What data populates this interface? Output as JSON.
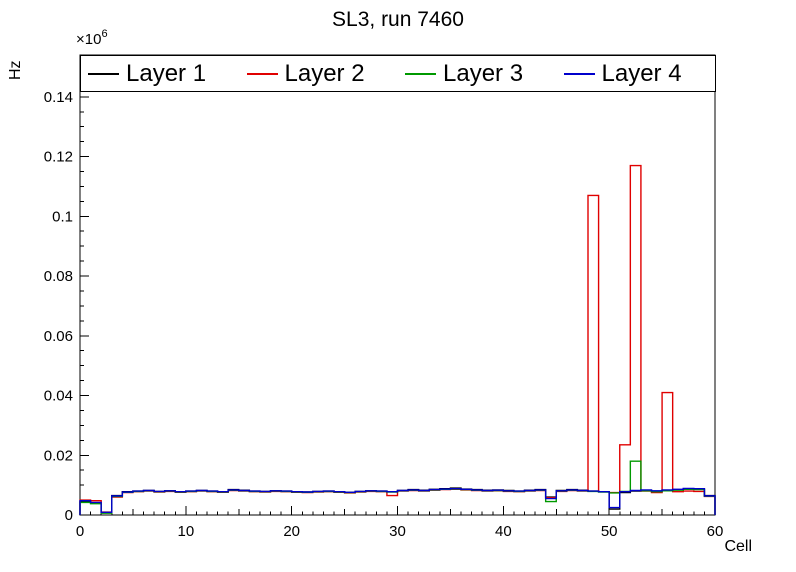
{
  "chart_data": {
    "type": "line",
    "subtype": "step-histogram",
    "title": "SL3, run 7460",
    "xlabel": "Cell",
    "ylabel": "Hz",
    "y_exponent_base": "×10",
    "y_exponent_power": "6",
    "values_unit": "Hz, in units of 10^6",
    "xlim": [
      0,
      60
    ],
    "ylim": [
      0,
      0.154
    ],
    "bin_width": 1,
    "grid": false,
    "legend_position": "top",
    "xticks": [
      0,
      10,
      20,
      30,
      40,
      50,
      60
    ],
    "ytick_values": [
      0,
      0.02,
      0.04,
      0.06,
      0.08,
      0.1,
      0.12,
      0.14
    ],
    "ytick_labels": [
      "0",
      "0.02",
      "0.04",
      "0.06",
      "0.08",
      "0.1",
      "0.12",
      "0.14"
    ],
    "series": [
      {
        "name": "Layer 1",
        "color": "#000000",
        "values": [
          0.0045,
          0.004,
          0.0008,
          0.0065,
          0.0078,
          0.008,
          0.0082,
          0.0079,
          0.0081,
          0.0078,
          0.008,
          0.0082,
          0.008,
          0.0078,
          0.0085,
          0.0083,
          0.008,
          0.0079,
          0.0081,
          0.008,
          0.0078,
          0.0077,
          0.0079,
          0.008,
          0.0078,
          0.0076,
          0.0079,
          0.0081,
          0.008,
          0.0078,
          0.0082,
          0.0085,
          0.0083,
          0.0086,
          0.0088,
          0.009,
          0.0087,
          0.0085,
          0.0083,
          0.0084,
          0.0082,
          0.008,
          0.0083,
          0.0085,
          0.006,
          0.0082,
          0.0085,
          0.0083,
          0.008,
          0.0078,
          0.002,
          0.0075,
          0.008,
          0.0082,
          0.008,
          0.0083,
          0.0085,
          0.0088,
          0.0087,
          0.0065
        ]
      },
      {
        "name": "Layer 2",
        "color": "#e00000",
        "values": [
          0.005,
          0.0048,
          0.001,
          0.006,
          0.0075,
          0.0078,
          0.008,
          0.0077,
          0.0079,
          0.0076,
          0.0078,
          0.008,
          0.0078,
          0.0076,
          0.0082,
          0.008,
          0.0078,
          0.0077,
          0.0079,
          0.0078,
          0.0076,
          0.0075,
          0.0077,
          0.0078,
          0.0076,
          0.0074,
          0.0077,
          0.0079,
          0.0078,
          0.0065,
          0.008,
          0.0082,
          0.008,
          0.0083,
          0.0085,
          0.0086,
          0.0084,
          0.0082,
          0.008,
          0.0081,
          0.0079,
          0.0078,
          0.008,
          0.0082,
          0.0058,
          0.0079,
          0.0082,
          0.008,
          0.107,
          0.0078,
          0.0075,
          0.0235,
          0.117,
          0.008,
          0.0075,
          0.041,
          0.0078,
          0.008,
          0.0079,
          0.0062
        ]
      },
      {
        "name": "Layer 3",
        "color": "#009900",
        "values": [
          0.0042,
          0.0038,
          0.0006,
          0.0062,
          0.0076,
          0.0079,
          0.0081,
          0.0078,
          0.008,
          0.0077,
          0.0079,
          0.0081,
          0.0079,
          0.0077,
          0.0083,
          0.0081,
          0.0079,
          0.0078,
          0.008,
          0.0079,
          0.0077,
          0.0076,
          0.0078,
          0.0079,
          0.0077,
          0.0075,
          0.0078,
          0.008,
          0.0079,
          0.0077,
          0.0081,
          0.0083,
          0.0081,
          0.0084,
          0.0086,
          0.0087,
          0.0085,
          0.0083,
          0.0081,
          0.0082,
          0.008,
          0.0079,
          0.0081,
          0.0083,
          0.0045,
          0.008,
          0.0083,
          0.0081,
          0.0079,
          0.0077,
          0.0074,
          0.0079,
          0.018,
          0.0081,
          0.0078,
          0.0081,
          0.0083,
          0.0086,
          0.0085,
          0.0063
        ]
      },
      {
        "name": "Layer 4",
        "color": "#0000cc",
        "values": [
          0.0048,
          0.0042,
          0.0009,
          0.0064,
          0.0077,
          0.008,
          0.0082,
          0.0079,
          0.0081,
          0.0078,
          0.008,
          0.0082,
          0.008,
          0.0078,
          0.0084,
          0.0082,
          0.008,
          0.0079,
          0.0081,
          0.008,
          0.0078,
          0.0077,
          0.0079,
          0.008,
          0.0078,
          0.0076,
          0.0079,
          0.0081,
          0.008,
          0.0078,
          0.0082,
          0.0084,
          0.0082,
          0.0085,
          0.0087,
          0.0088,
          0.0086,
          0.0084,
          0.0082,
          0.0083,
          0.0081,
          0.008,
          0.0082,
          0.0084,
          0.0055,
          0.0081,
          0.0084,
          0.0082,
          0.008,
          0.0078,
          0.0025,
          0.0078,
          0.0082,
          0.0084,
          0.0081,
          0.0084,
          0.0086,
          0.0089,
          0.0088,
          0.0064
        ]
      }
    ]
  }
}
